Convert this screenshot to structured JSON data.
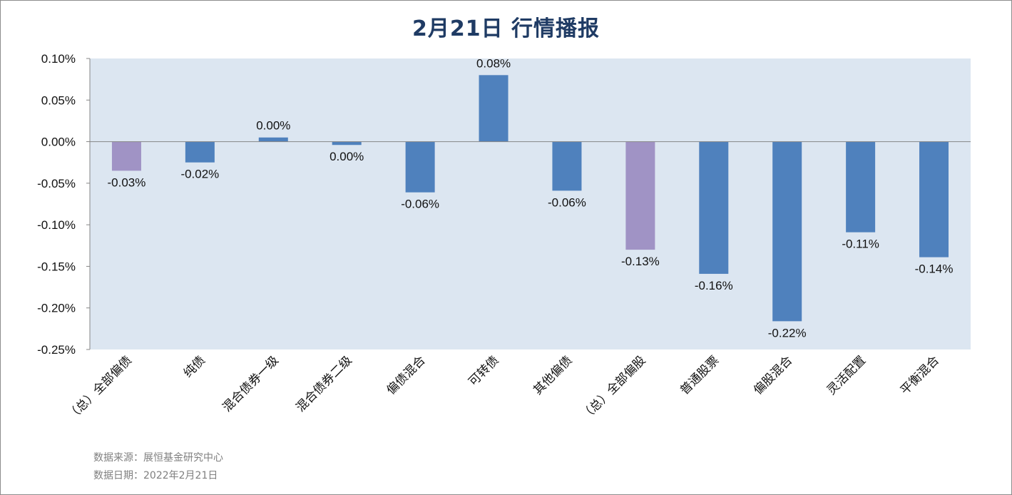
{
  "chart_data": {
    "type": "bar",
    "title": "2月21日  行情播报",
    "categories": [
      "（总）全部偏债",
      "纯债",
      "混合债券一级",
      "混合债券二级",
      "偏债混合",
      "可转债",
      "其他偏债",
      "（总）全部偏股",
      "普通股票",
      "偏股混合",
      "灵活配置",
      "平衡混合"
    ],
    "values": [
      -0.035,
      -0.025,
      0.005,
      -0.004,
      -0.061,
      0.08,
      -0.059,
      -0.13,
      -0.159,
      -0.216,
      -0.109,
      -0.139
    ],
    "data_labels": [
      "-0.03%",
      "-0.02%",
      "0.00%",
      "0.00%",
      "-0.06%",
      "0.08%",
      "-0.06%",
      "-0.13%",
      "-0.16%",
      "-0.22%",
      "-0.11%",
      "-0.14%"
    ],
    "ylim": [
      -0.25,
      0.1
    ],
    "yticks": [
      0.1,
      0.05,
      0.0,
      -0.05,
      -0.1,
      -0.15,
      -0.2,
      -0.25
    ],
    "ytick_labels": [
      "0.10%",
      "0.05%",
      "0.00%",
      "-0.05%",
      "-0.10%",
      "-0.15%",
      "-0.20%",
      "-0.25%"
    ],
    "xlabel": "",
    "ylabel": "",
    "grid": false,
    "legend": "none",
    "colors": {
      "bar": "#4f81bd",
      "total_bar": "#a093c5",
      "plot_bg": "#dce6f1"
    },
    "total_categories": [
      "（总）全部偏债",
      "（总）全部偏股"
    ]
  },
  "footer": {
    "source": "数据来源：展恒基金研究中心",
    "date": "数据日期：2022年2月21日"
  }
}
